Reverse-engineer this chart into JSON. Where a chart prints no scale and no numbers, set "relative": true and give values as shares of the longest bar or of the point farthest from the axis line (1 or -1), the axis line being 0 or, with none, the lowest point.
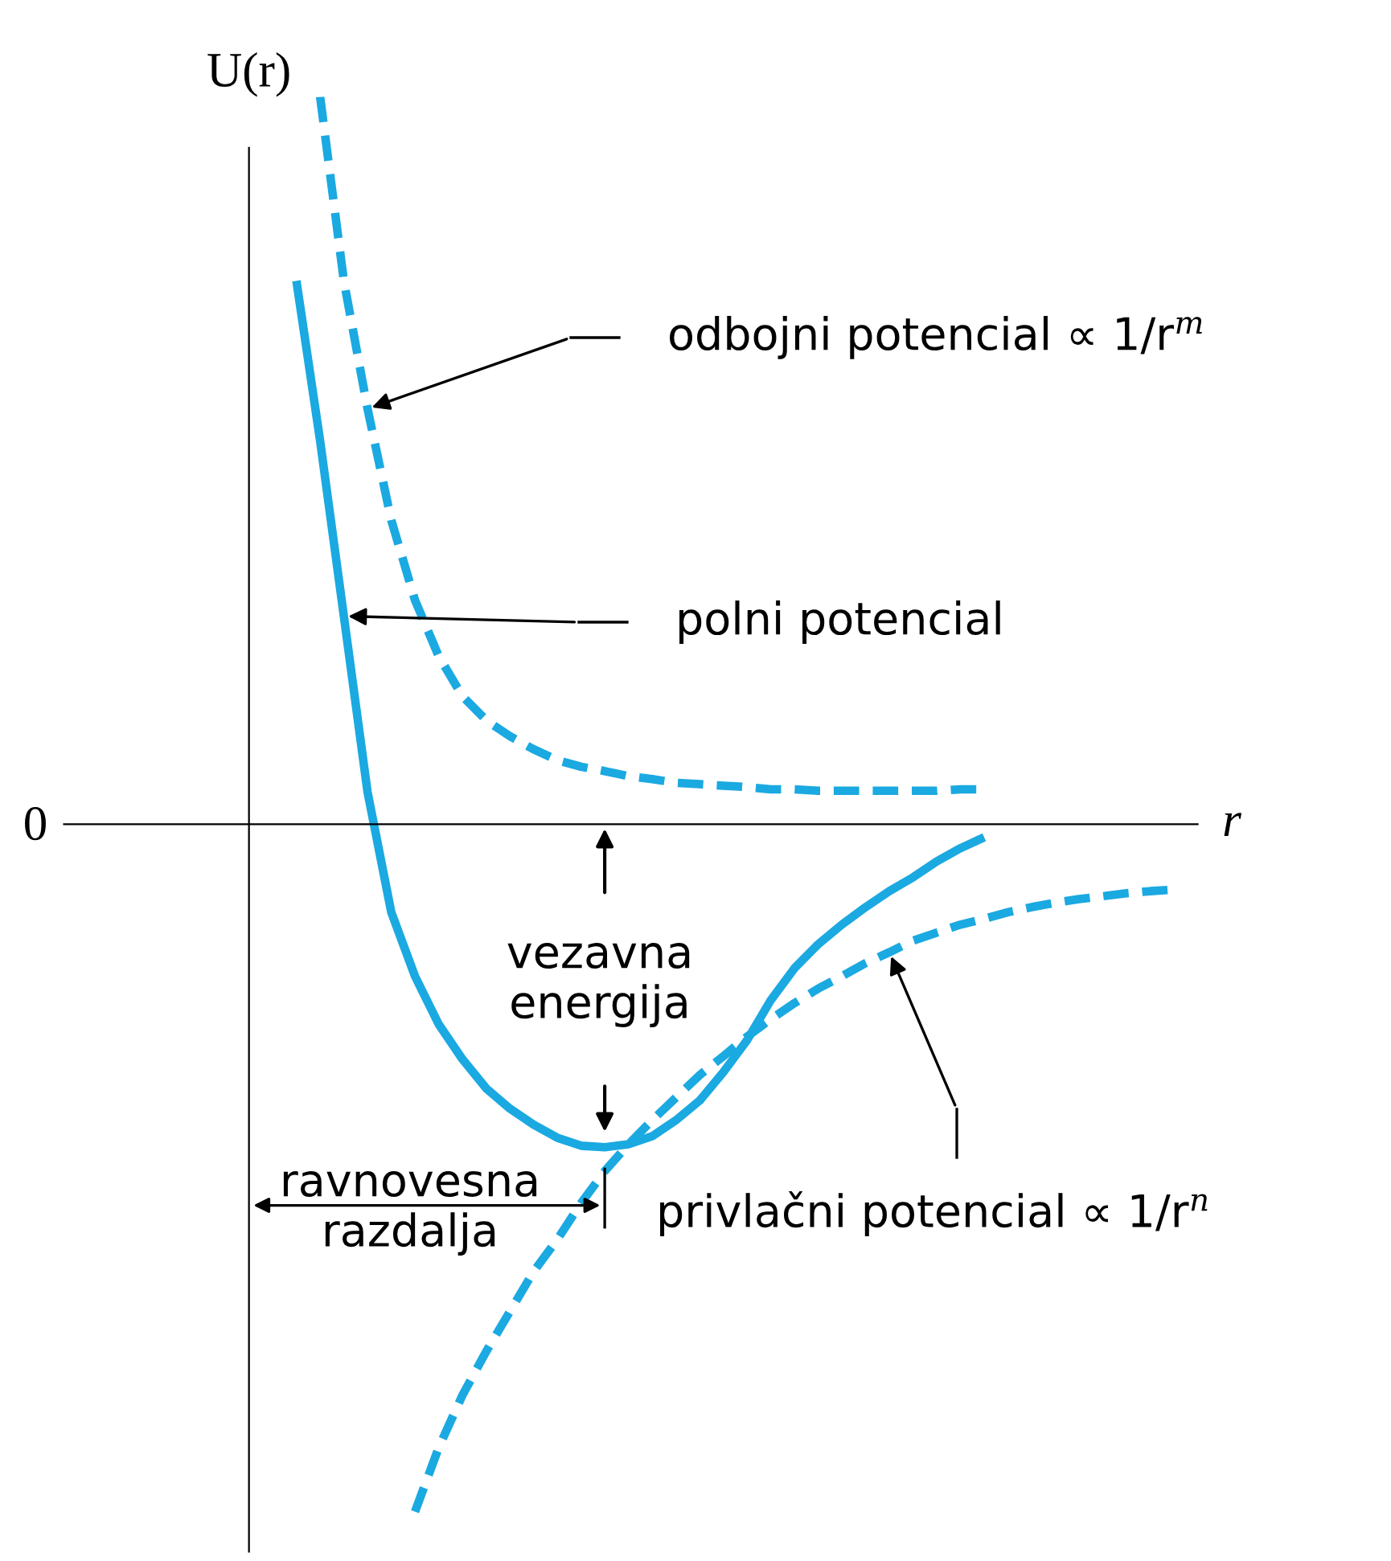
{
  "chart_data": {
    "type": "line",
    "relative": true,
    "xlabel": "r",
    "ylabel": "U(r)",
    "legend": false,
    "marker": "none",
    "categories": [
      null,
      null,
      null,
      null,
      null,
      null,
      null,
      null,
      null,
      null,
      null,
      null,
      null,
      null,
      null,
      null,
      null,
      null,
      null,
      null,
      null,
      null,
      null,
      null,
      null,
      null,
      null,
      null,
      null,
      null,
      null,
      null,
      null,
      null,
      null,
      null,
      null,
      null,
      null,
      null,
      null
    ],
    "series": [
      {
        "color": "#1ba9e1",
        "line_style": "dashed",
        "values": [
          null,
          null,
          null,
          1.0,
          0.747,
          0.571,
          0.418,
          0.308,
          0.231,
          0.176,
          0.143,
          0.121,
          0.103,
          0.088,
          0.079,
          0.073,
          0.066,
          0.062,
          0.057,
          0.055,
          0.053,
          0.051,
          0.048,
          0.048,
          0.046,
          0.046,
          0.046,
          0.046,
          0.046,
          0.046,
          0.048,
          0.048,
          null,
          null,
          null,
          null,
          null,
          null,
          null,
          null,
          null
        ]
      },
      {
        "color": "#1ba9e1",
        "line_style": "solid",
        "values": [
          null,
          null,
          0.747,
          0.527,
          0.286,
          0.044,
          -0.121,
          -0.209,
          -0.275,
          -0.323,
          -0.363,
          -0.391,
          -0.413,
          -0.431,
          -0.442,
          -0.444,
          -0.44,
          -0.429,
          -0.407,
          -0.38,
          -0.341,
          -0.297,
          -0.242,
          -0.198,
          -0.165,
          -0.138,
          -0.114,
          -0.092,
          -0.073,
          -0.051,
          -0.033,
          -0.018,
          null,
          null,
          null,
          null,
          null,
          null,
          null,
          null,
          null
        ]
      },
      {
        "color": "#1ba9e1",
        "line_style": "dashed",
        "values": [
          null,
          null,
          null,
          null,
          null,
          null,
          null,
          -0.945,
          -0.857,
          -0.785,
          -0.725,
          -0.67,
          -0.615,
          -0.571,
          -0.521,
          -0.477,
          -0.44,
          -0.407,
          -0.376,
          -0.345,
          -0.319,
          -0.292,
          -0.268,
          -0.246,
          -0.226,
          -0.209,
          -0.191,
          -0.176,
          -0.16,
          -0.149,
          -0.138,
          -0.13,
          -0.121,
          -0.114,
          -0.108,
          -0.103,
          -0.099,
          -0.095,
          -0.092,
          -0.09,
          null
        ]
      }
    ],
    "annotations": [
      "odbojni potencial ∝ 1/r$^{m}$",
      "polni potencial",
      "vezavna\nenergija",
      "ravnovesna\nrazdalja",
      "privlačni potencial ∝ 1/r$^{n}$",
      "0"
    ]
  }
}
